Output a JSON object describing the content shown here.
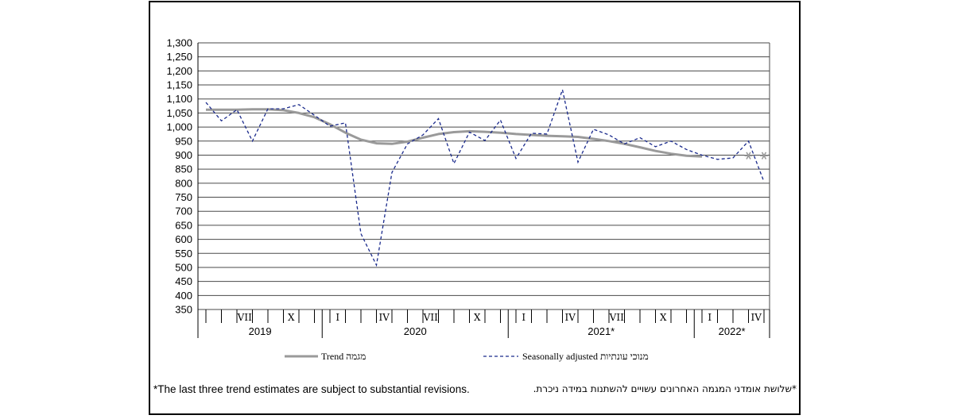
{
  "chart_data": {
    "type": "line",
    "ylim": [
      350,
      1300
    ],
    "yticks": [
      "350",
      "400",
      "450",
      "500",
      "550",
      "600",
      "650",
      "700",
      "750",
      "800",
      "850",
      "900",
      "950",
      "1,000",
      "1,050",
      "1,100",
      "1,150",
      "1,200",
      "1,250",
      "1,300"
    ],
    "grid": true,
    "month_labels": [
      {
        "index": 2,
        "label": "VII"
      },
      {
        "index": 5,
        "label": "X"
      },
      {
        "index": 8,
        "label": "I"
      },
      {
        "index": 11,
        "label": "IV"
      },
      {
        "index": 14,
        "label": "VII"
      },
      {
        "index": 17,
        "label": "X"
      },
      {
        "index": 20,
        "label": "I"
      },
      {
        "index": 23,
        "label": "IV"
      },
      {
        "index": 26,
        "label": "VII"
      },
      {
        "index": 29,
        "label": "X"
      },
      {
        "index": 32,
        "label": "I"
      },
      {
        "index": 35,
        "label": "IV"
      }
    ],
    "years": [
      {
        "label": "2019",
        "start": 0,
        "end": 7
      },
      {
        "label": "2020",
        "start": 8,
        "end": 19
      },
      {
        "label": "2021*",
        "start": 20,
        "end": 31
      },
      {
        "label": "2022*",
        "start": 32,
        "end": 36
      }
    ],
    "series": [
      {
        "name": "Trend מגמה",
        "style": "solid",
        "color": "#9a9a9a",
        "values": [
          1062,
          1062,
          1062,
          1063,
          1063,
          1060,
          1050,
          1035,
          1010,
          980,
          955,
          942,
          940,
          948,
          962,
          975,
          982,
          985,
          983,
          980,
          975,
          972,
          969,
          967,
          965,
          958,
          950,
          940,
          928,
          915,
          905,
          898,
          895,
          null,
          null
        ],
        "revised_points": [
          {
            "index": 35,
            "value": 898
          },
          {
            "index": 36,
            "value": 898
          }
        ]
      },
      {
        "name": "Seasonally adjusted מנוכי עונתיות",
        "style": "dashed",
        "color": "#1a2a8c",
        "values": [
          1088,
          1022,
          1062,
          950,
          1065,
          1065,
          1080,
          1042,
          1003,
          1015,
          620,
          508,
          838,
          940,
          972,
          1030,
          870,
          982,
          952,
          1025,
          888,
          978,
          975,
          1133,
          875,
          992,
          972,
          940,
          962,
          930,
          950,
          920,
          900,
          885,
          890,
          950,
          805
        ]
      }
    ],
    "legend": {
      "trend_label": "Trend מגמה",
      "sa_label": "Seasonally adjusted מנוכי עונתיות"
    }
  },
  "notes": {
    "english": "*The last three trend estimates are subject to substantial revisions.",
    "hebrew": "*שלושת אומדני המגמה האחרונים עשויים להשתנות במידה ניכרת."
  }
}
